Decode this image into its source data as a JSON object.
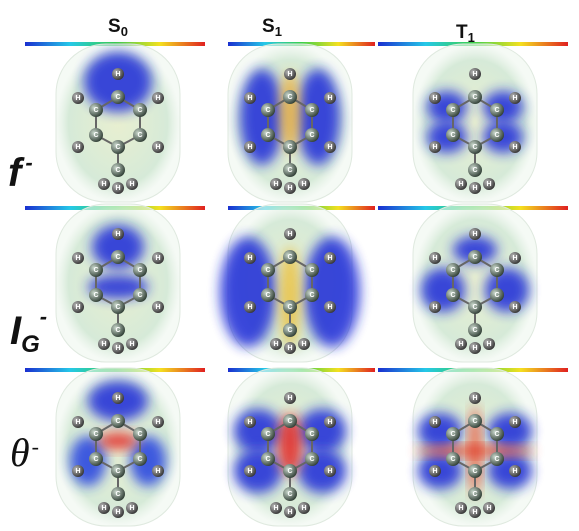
{
  "columns": [
    {
      "name": "S",
      "subscript": "0"
    },
    {
      "name": "S",
      "subscript": "1"
    },
    {
      "name": "T",
      "subscript": "1"
    }
  ],
  "rows": [
    {
      "symbol": "f",
      "charge": "-"
    },
    {
      "symbol": "I",
      "subscript": "G",
      "charge": "-"
    },
    {
      "symbol": "θ",
      "charge": "-"
    }
  ],
  "atom_labels": {
    "carbon": "C",
    "hydrogen": "H"
  }
}
